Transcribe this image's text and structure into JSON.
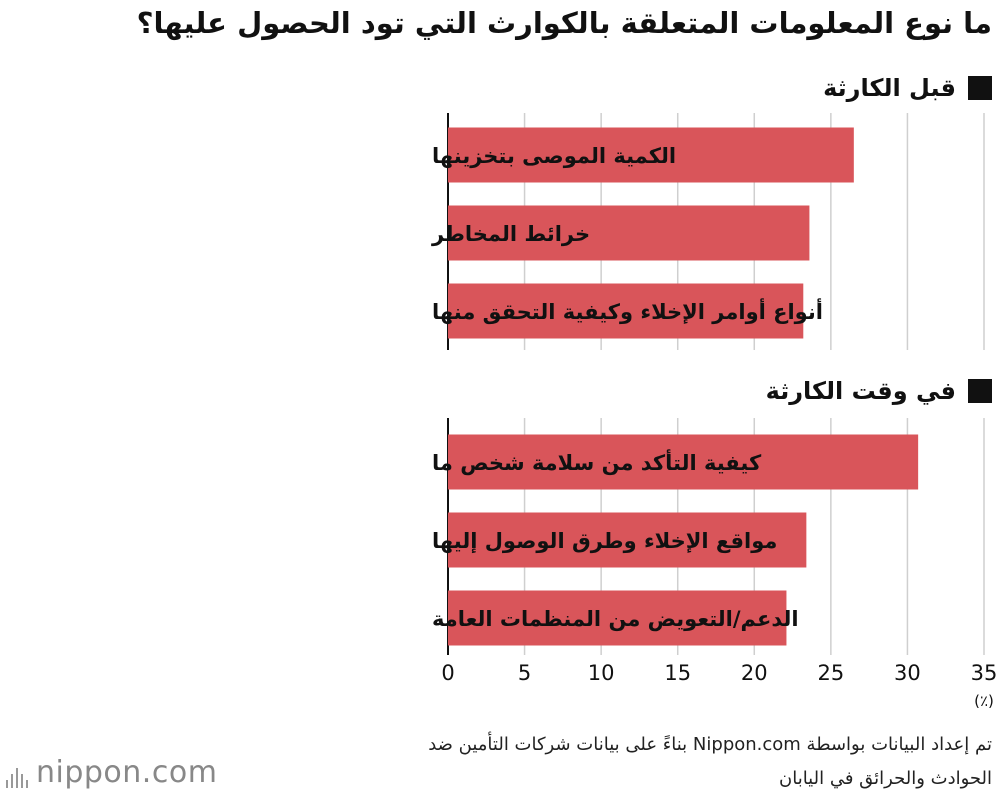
{
  "title": "ما نوع المعلومات المتعلقة بالكوارث التي تود الحصول عليها؟",
  "source_line1": "تم إعداد البيانات بواسطة Nippon.com بناءً على بيانات شركات التأمين ضد",
  "source_line2": "الحوادث والحرائق في اليابان",
  "logo": "nippon.com",
  "colors": {
    "bar": "#d9555a",
    "grid": "#cfcfcf",
    "axis": "#111111"
  },
  "chart_data": {
    "type": "bar",
    "orientation": "horizontal",
    "unit_label": "(٪)",
    "xlim": [
      0,
      35
    ],
    "xticks": [
      0,
      5,
      10,
      15,
      20,
      25,
      30,
      35
    ],
    "groups": [
      {
        "label": "قبل الكارثة",
        "categories": [
          "الكمية الموصى بتخزينها",
          "خرائط المخاطر",
          "أنواع أوامر الإخلاء وكيفية التحقق منها"
        ],
        "values": [
          26.5,
          23.6,
          23.2
        ]
      },
      {
        "label": "في وقت الكارثة",
        "categories": [
          "كيفية التأكد من سلامة شخص ما",
          "مواقع الإخلاء وطرق الوصول إليها",
          "الدعم/التعويض من المنظمات العامة"
        ],
        "values": [
          30.7,
          23.4,
          22.1
        ]
      }
    ]
  }
}
